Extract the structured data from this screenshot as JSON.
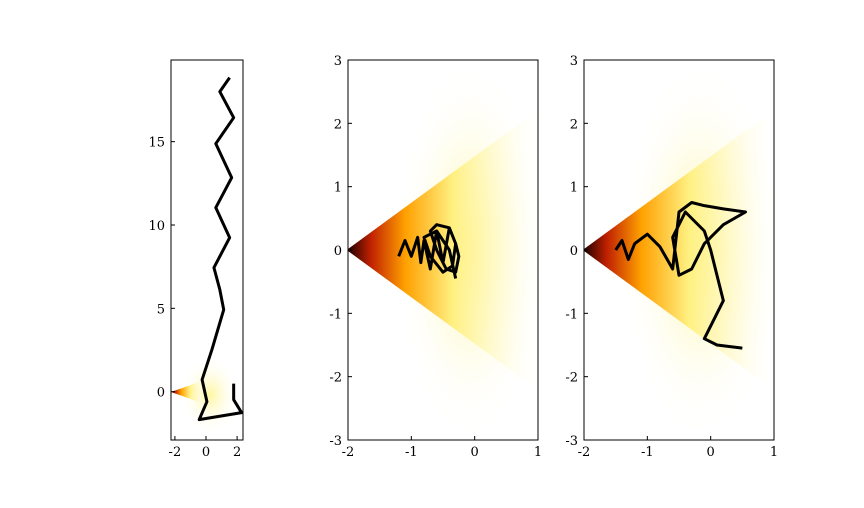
{
  "chart_data": [
    {
      "type": "line",
      "xlim": [
        -2.25,
        2.38
      ],
      "ylim": [
        -2.9,
        19.9
      ],
      "xticks": [
        -2,
        0,
        2
      ],
      "yticks": [
        0,
        5,
        10,
        15
      ],
      "x": [
        1.78,
        1.78,
        2.29,
        -0.44,
        0.06,
        -0.25,
        0.38,
        1.14,
        0.89,
        0.51,
        1.52,
        0.63,
        1.65,
        0.63,
        1.78,
        0.89,
        1.52
      ],
      "series": [
        {
          "color": "#000000",
          "values": [
            0.48,
            -0.48,
            -1.26,
            -1.68,
            -0.6,
            0.72,
            2.52,
            4.92,
            6.12,
            7.44,
            9.24,
            11.04,
            12.84,
            14.88,
            16.44,
            18.0,
            18.84
          ]
        }
      ]
    },
    {
      "type": "line",
      "xlim": [
        -2,
        1
      ],
      "ylim": [
        -3,
        3
      ],
      "xticks": [
        -2,
        -1,
        0,
        1
      ],
      "yticks": [
        -3,
        -2,
        -1,
        0,
        1,
        2,
        3
      ],
      "x": [
        -1.2,
        -1.1,
        -1.0,
        -0.9,
        -0.85,
        -0.8,
        -0.7,
        -0.6,
        -0.5,
        -0.4,
        -0.3,
        -0.25,
        -0.3,
        -0.45,
        -0.6,
        -0.7,
        -0.6,
        -0.4,
        -0.3,
        -0.35,
        -0.5,
        -0.7,
        -0.8,
        -0.6,
        -0.4,
        -0.3
      ],
      "series": [
        {
          "color": "#000000",
          "values": [
            -0.1,
            0.15,
            -0.1,
            0.2,
            -0.2,
            0.15,
            -0.3,
            0.3,
            -0.2,
            0.35,
            0.1,
            -0.1,
            -0.35,
            -0.3,
            0.0,
            0.3,
            0.4,
            0.35,
            0.1,
            -0.25,
            -0.35,
            -0.1,
            0.2,
            0.3,
            0.0,
            -0.45
          ]
        }
      ]
    },
    {
      "type": "line",
      "xlim": [
        -2,
        1
      ],
      "ylim": [
        -3,
        3
      ],
      "xticks": [
        -2,
        -1,
        0,
        1
      ],
      "yticks": [
        -3,
        -2,
        -1,
        0,
        1,
        2,
        3
      ],
      "x": [
        -1.5,
        -1.4,
        -1.3,
        -1.2,
        -1.0,
        -0.8,
        -0.6,
        -0.5,
        -0.3,
        -0.1,
        0.2,
        0.55,
        0.2,
        -0.1,
        -0.3,
        -0.5,
        -0.6,
        -0.4,
        -0.1,
        0.0,
        0.1,
        0.2,
        0.05,
        -0.1,
        0.1,
        0.5
      ],
      "series": [
        {
          "color": "#000000",
          "values": [
            0,
            0.15,
            -0.15,
            0.1,
            0.25,
            0.05,
            -0.3,
            0.6,
            0.75,
            0.7,
            0.65,
            0.6,
            0.4,
            0.1,
            -0.3,
            -0.4,
            0.2,
            0.6,
            0.3,
            0.0,
            -0.4,
            -0.8,
            -1.1,
            -1.4,
            -1.5,
            -1.55
          ]
        }
      ]
    }
  ]
}
